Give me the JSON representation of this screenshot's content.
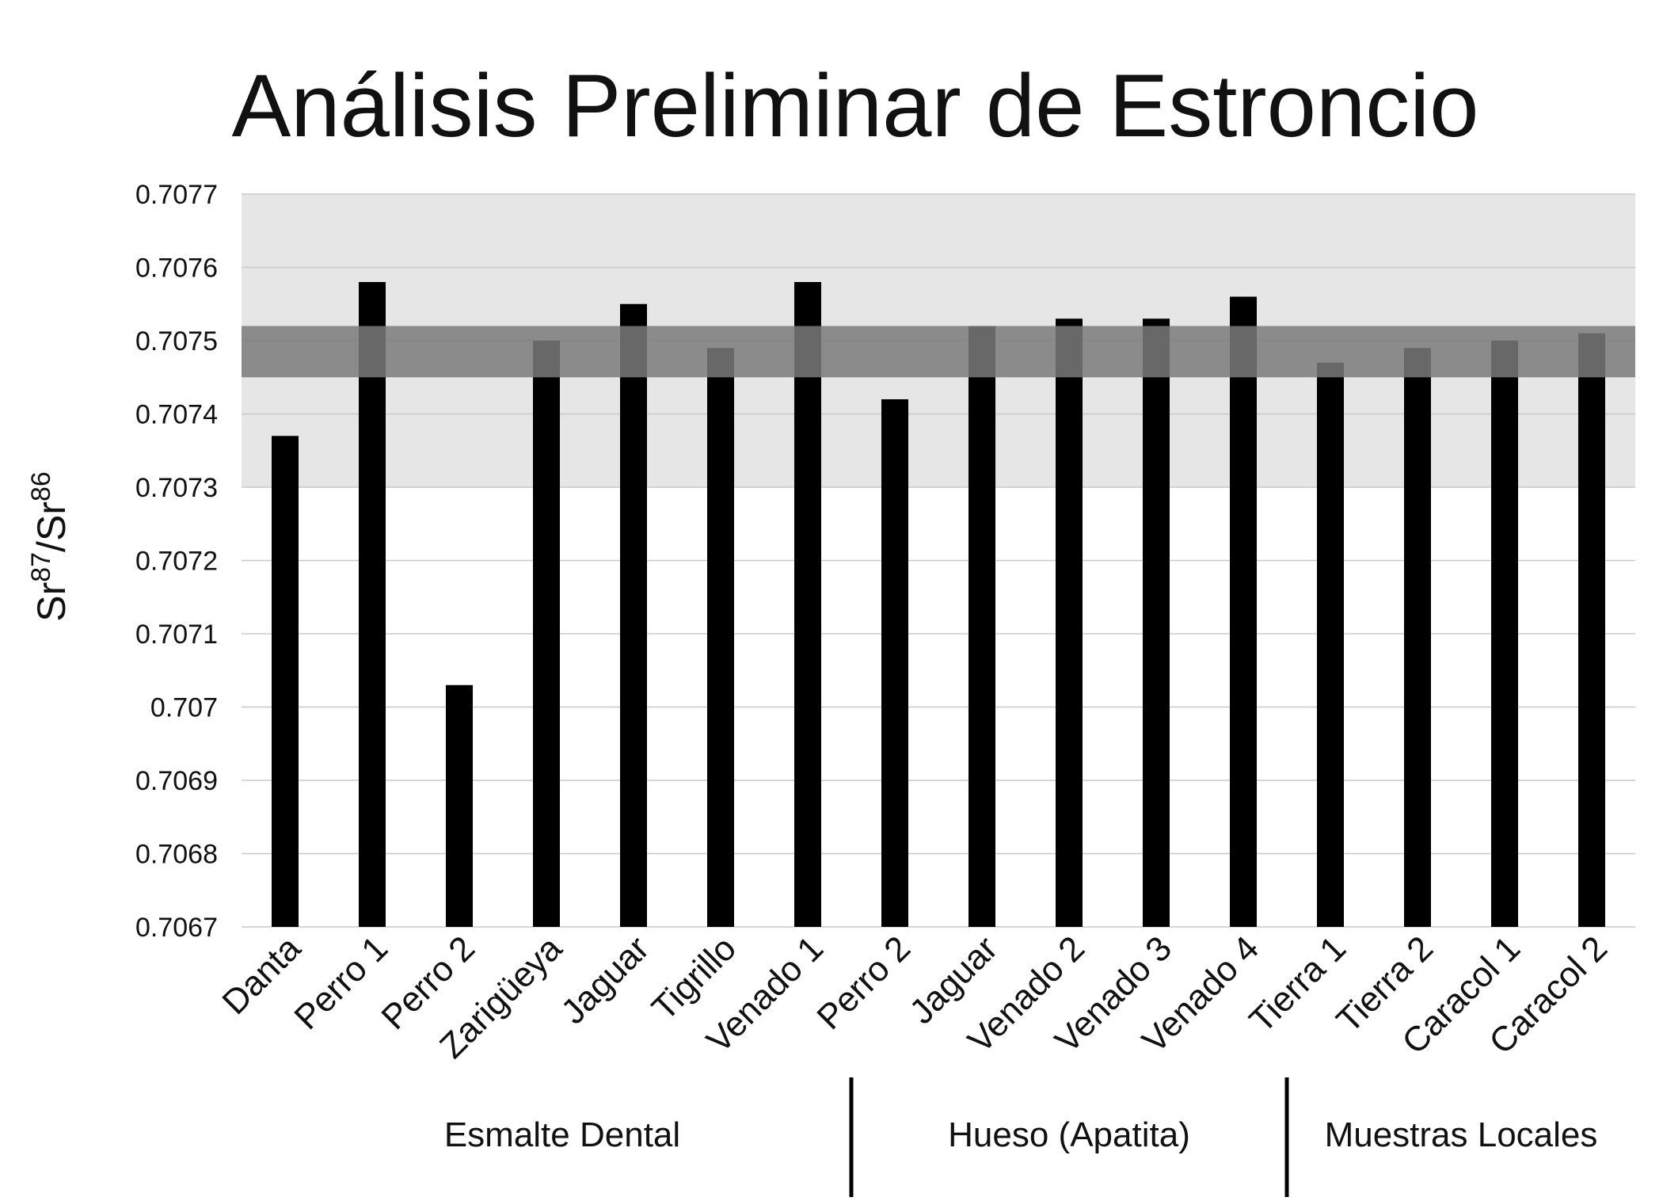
{
  "chart_data": {
    "type": "bar",
    "title": "Análisis Preliminar de Estroncio",
    "ylabel": "Sr87/Sr86",
    "ylabel_base": "Sr",
    "ylabel_sup1": "87",
    "ylabel_sep": "/",
    "ylabel_sup2": "86",
    "ylim": [
      0.7067,
      0.7077
    ],
    "y_ticks": [
      "0.7067",
      "0.7068",
      "0.7069",
      "0.707",
      "0.7071",
      "0.7072",
      "0.7073",
      "0.7074",
      "0.7075",
      "0.7076",
      "0.7077"
    ],
    "grid": true,
    "categories": [
      "Danta",
      "Perro 1",
      "Perro 2",
      "Zarigüeya",
      "Jaguar",
      "Tigrillo",
      "Venado 1",
      "Perro 2",
      "Jaguar",
      "Venado 2",
      "Venado 3",
      "Venado 4",
      "Tierra 1",
      "Tierra 2",
      "Caracol 1",
      "Caracol 2"
    ],
    "values": [
      0.70737,
      0.70758,
      0.70703,
      0.7075,
      0.70755,
      0.70749,
      0.70758,
      0.70742,
      0.70752,
      0.70753,
      0.70753,
      0.70756,
      0.70747,
      0.70749,
      0.7075,
      0.70751
    ],
    "groups": [
      {
        "label": "Esmalte Dental",
        "start": 0,
        "end": 6
      },
      {
        "label": "Hueso (Apatita)",
        "start": 7,
        "end": 11
      },
      {
        "label": "Muestras Locales",
        "start": 12,
        "end": 15
      }
    ],
    "bands": [
      {
        "range": [
          0.7073,
          0.7077
        ],
        "color": "#e6e6e6"
      },
      {
        "range": [
          0.70745,
          0.70752
        ],
        "color": "#7a7a7a",
        "opacity": 0.85
      }
    ],
    "bar_color": "#000000"
  }
}
